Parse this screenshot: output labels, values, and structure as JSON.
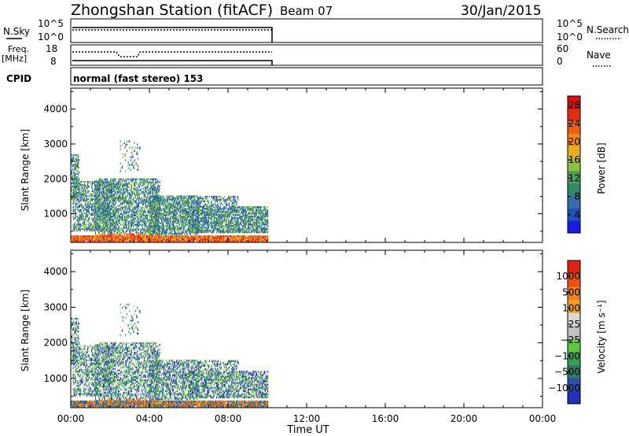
{
  "header": {
    "station": "Zhongshan Station (fitACF)",
    "beam": "Beam 07",
    "date": "30/Jan/2015"
  },
  "panels": {
    "nsky": {
      "left_label": "N.Sky",
      "left_ticks": [
        "10^5",
        "10^0"
      ],
      "right_ticks": [
        "10^5",
        "10^0"
      ],
      "right_label": "N.Search"
    },
    "freq": {
      "left_label_1": "Freq.",
      "left_label_2": "[MHz]",
      "left_ticks": [
        "18",
        "8"
      ],
      "right_ticks": [
        "60",
        "0"
      ],
      "right_label": "Nave"
    },
    "cpid": {
      "label": "CPID",
      "text": "normal (fast stereo) 153"
    }
  },
  "colors": {
    "power_scale": [
      "#1a1ae6",
      "#1e4fb5",
      "#3a6aa8",
      "#2e8a6a",
      "#4aa05a",
      "#8fc13a",
      "#e8b020",
      "#f08a10",
      "#f06010",
      "#e03010",
      "#e01010"
    ],
    "velocity_scale": [
      "#2030b8",
      "#3050b0",
      "#2e7f5e",
      "#38a050",
      "#60c840",
      "#c0c0c0",
      "#d9d9d9",
      "#f0a020",
      "#f08020",
      "#f05010",
      "#e02010"
    ]
  },
  "chart_data": [
    {
      "type": "heatmap",
      "title": "",
      "xlabel": "",
      "ylabel": "Slant Range [km]",
      "xlim": [
        "00:00",
        "24:00"
      ],
      "ylim": [
        180,
        4600
      ],
      "yticks": [
        "1000",
        "2000",
        "3000",
        "4000"
      ],
      "colorbar": {
        "label": "Power [dB]",
        "ticks": [
          "4",
          "8",
          "12",
          "16",
          "20",
          "24",
          "28"
        ],
        "range": [
          0,
          30
        ]
      },
      "data_coverage": {
        "start": "00:00",
        "end": "10:00"
      },
      "echo_regions": [
        {
          "range_km": "200-350",
          "value": "high power (20-30 dB)",
          "time": "00:00-10:00"
        },
        {
          "range_km": "500-2600",
          "value": "low-moderate power (4-20 dB)",
          "time": "00:00-10:00"
        }
      ]
    },
    {
      "type": "heatmap",
      "title": "",
      "xlabel": "Time UT",
      "ylabel": "Slant Range [km]",
      "xlim": [
        "00:00",
        "24:00"
      ],
      "ylim": [
        180,
        4600
      ],
      "xticks": [
        "00:00",
        "04:00",
        "08:00",
        "12:00",
        "16:00",
        "20:00",
        "00:00"
      ],
      "yticks": [
        "1000",
        "2000",
        "3000",
        "4000"
      ],
      "colorbar": {
        "label": "Velocity [m s⁻¹]",
        "ticks": [
          "1000",
          "500",
          "100",
          "25",
          "−25",
          "−100",
          "−500",
          "−1000"
        ]
      },
      "data_coverage": {
        "start": "00:00",
        "end": "10:00"
      }
    }
  ]
}
